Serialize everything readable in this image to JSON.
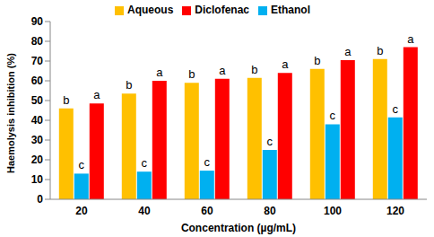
{
  "chart_data": {
    "type": "bar",
    "x_label": "Concentration (µg/mL)",
    "y_label": "Haemolysis inhibition (%)",
    "categories": [
      "20",
      "40",
      "60",
      "80",
      "100",
      "120"
    ],
    "series": [
      {
        "name": "Aqueous",
        "color": "#FFC000",
        "values": [
          46,
          53.5,
          59,
          61.5,
          66,
          71
        ],
        "annotations": [
          "b",
          "b",
          "b",
          "b",
          "b",
          "b"
        ]
      },
      {
        "name": "Ethanol",
        "color": "#00B0F0",
        "values": [
          13,
          14,
          14.5,
          25,
          38,
          41.5
        ],
        "annotations": [
          "c",
          "c",
          "c",
          "c",
          "c",
          "c"
        ]
      },
      {
        "name": "Diclofenac",
        "color": "#FF0000",
        "values": [
          48.5,
          60,
          61,
          64,
          70.5,
          77
        ],
        "annotations": [
          "a",
          "a",
          "a",
          "a",
          "a",
          "a"
        ]
      }
    ],
    "ylim": [
      0,
      90
    ],
    "yticks": [
      0,
      10,
      20,
      30,
      40,
      50,
      60,
      70,
      80,
      90
    ],
    "grid": false,
    "legend": "top"
  }
}
